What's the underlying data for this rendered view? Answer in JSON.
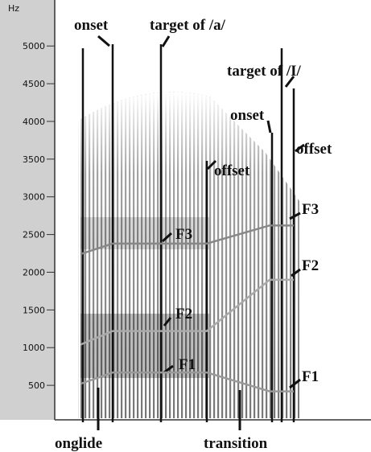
{
  "chart_data": {
    "type": "line",
    "ylabel": "Hz",
    "ylim": [
      0,
      5450
    ],
    "yticks": [
      500,
      1000,
      1500,
      2000,
      2500,
      3000,
      3500,
      4000,
      4500,
      5000
    ],
    "categories": [
      null,
      null,
      null,
      null,
      null,
      null
    ],
    "series": [
      {
        "color": "#888",
        "values": [
          2240,
          2380,
          2380,
          2380,
          2620,
          2620
        ]
      },
      {
        "color": "#aaa",
        "values": [
          1040,
          1220,
          1220,
          1220,
          1900,
          1900
        ]
      },
      {
        "color": "#999",
        "values": [
          520,
          670,
          670,
          670,
          420,
          420
        ]
      }
    ],
    "annotations": [
      "onset",
      "target of /a/",
      "target of /I/",
      "onset",
      "offset",
      "offset",
      "F3",
      "F2",
      "F1",
      "F3",
      "F2",
      "F1",
      "onglide",
      "transition"
    ]
  }
}
